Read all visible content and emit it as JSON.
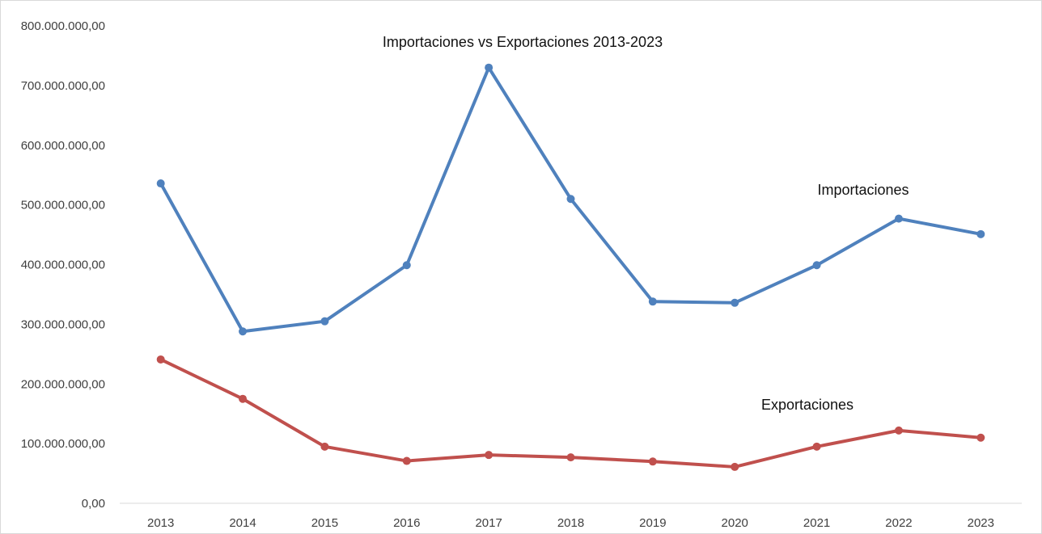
{
  "chart_data": {
    "type": "line",
    "title": "Importaciones vs Exportaciones 2013-2023",
    "xlabel": "",
    "ylabel": "",
    "categories": [
      "2013",
      "2014",
      "2015",
      "2016",
      "2017",
      "2018",
      "2019",
      "2020",
      "2021",
      "2022",
      "2023"
    ],
    "ylim": [
      0,
      800000000
    ],
    "y_ticks": [
      0,
      100000000,
      200000000,
      300000000,
      400000000,
      500000000,
      600000000,
      700000000,
      800000000
    ],
    "y_tick_labels": [
      "0,00",
      "100.000.000,00",
      "200.000.000,00",
      "300.000.000,00",
      "400.000.000,00",
      "500.000.000,00",
      "600.000.000,00",
      "700.000.000,00",
      "800.000.000,00"
    ],
    "grid": false,
    "legend": "none",
    "series": [
      {
        "name": "Importaciones",
        "color": "#4f81bd",
        "values": [
          536000000,
          288000000,
          305000000,
          399000000,
          730000000,
          510000000,
          338000000,
          336000000,
          399000000,
          477000000,
          451000000
        ]
      },
      {
        "name": "Exportaciones",
        "color": "#c0504d",
        "values": [
          241000000,
          175000000,
          95000000,
          71000000,
          81000000,
          77000000,
          70000000,
          61000000,
          95000000,
          122000000,
          110000000
        ]
      }
    ],
    "annotations": [
      {
        "text": "Importaciones",
        "series": "Importaciones"
      },
      {
        "text": "Exportaciones",
        "series": "Exportaciones"
      }
    ]
  }
}
